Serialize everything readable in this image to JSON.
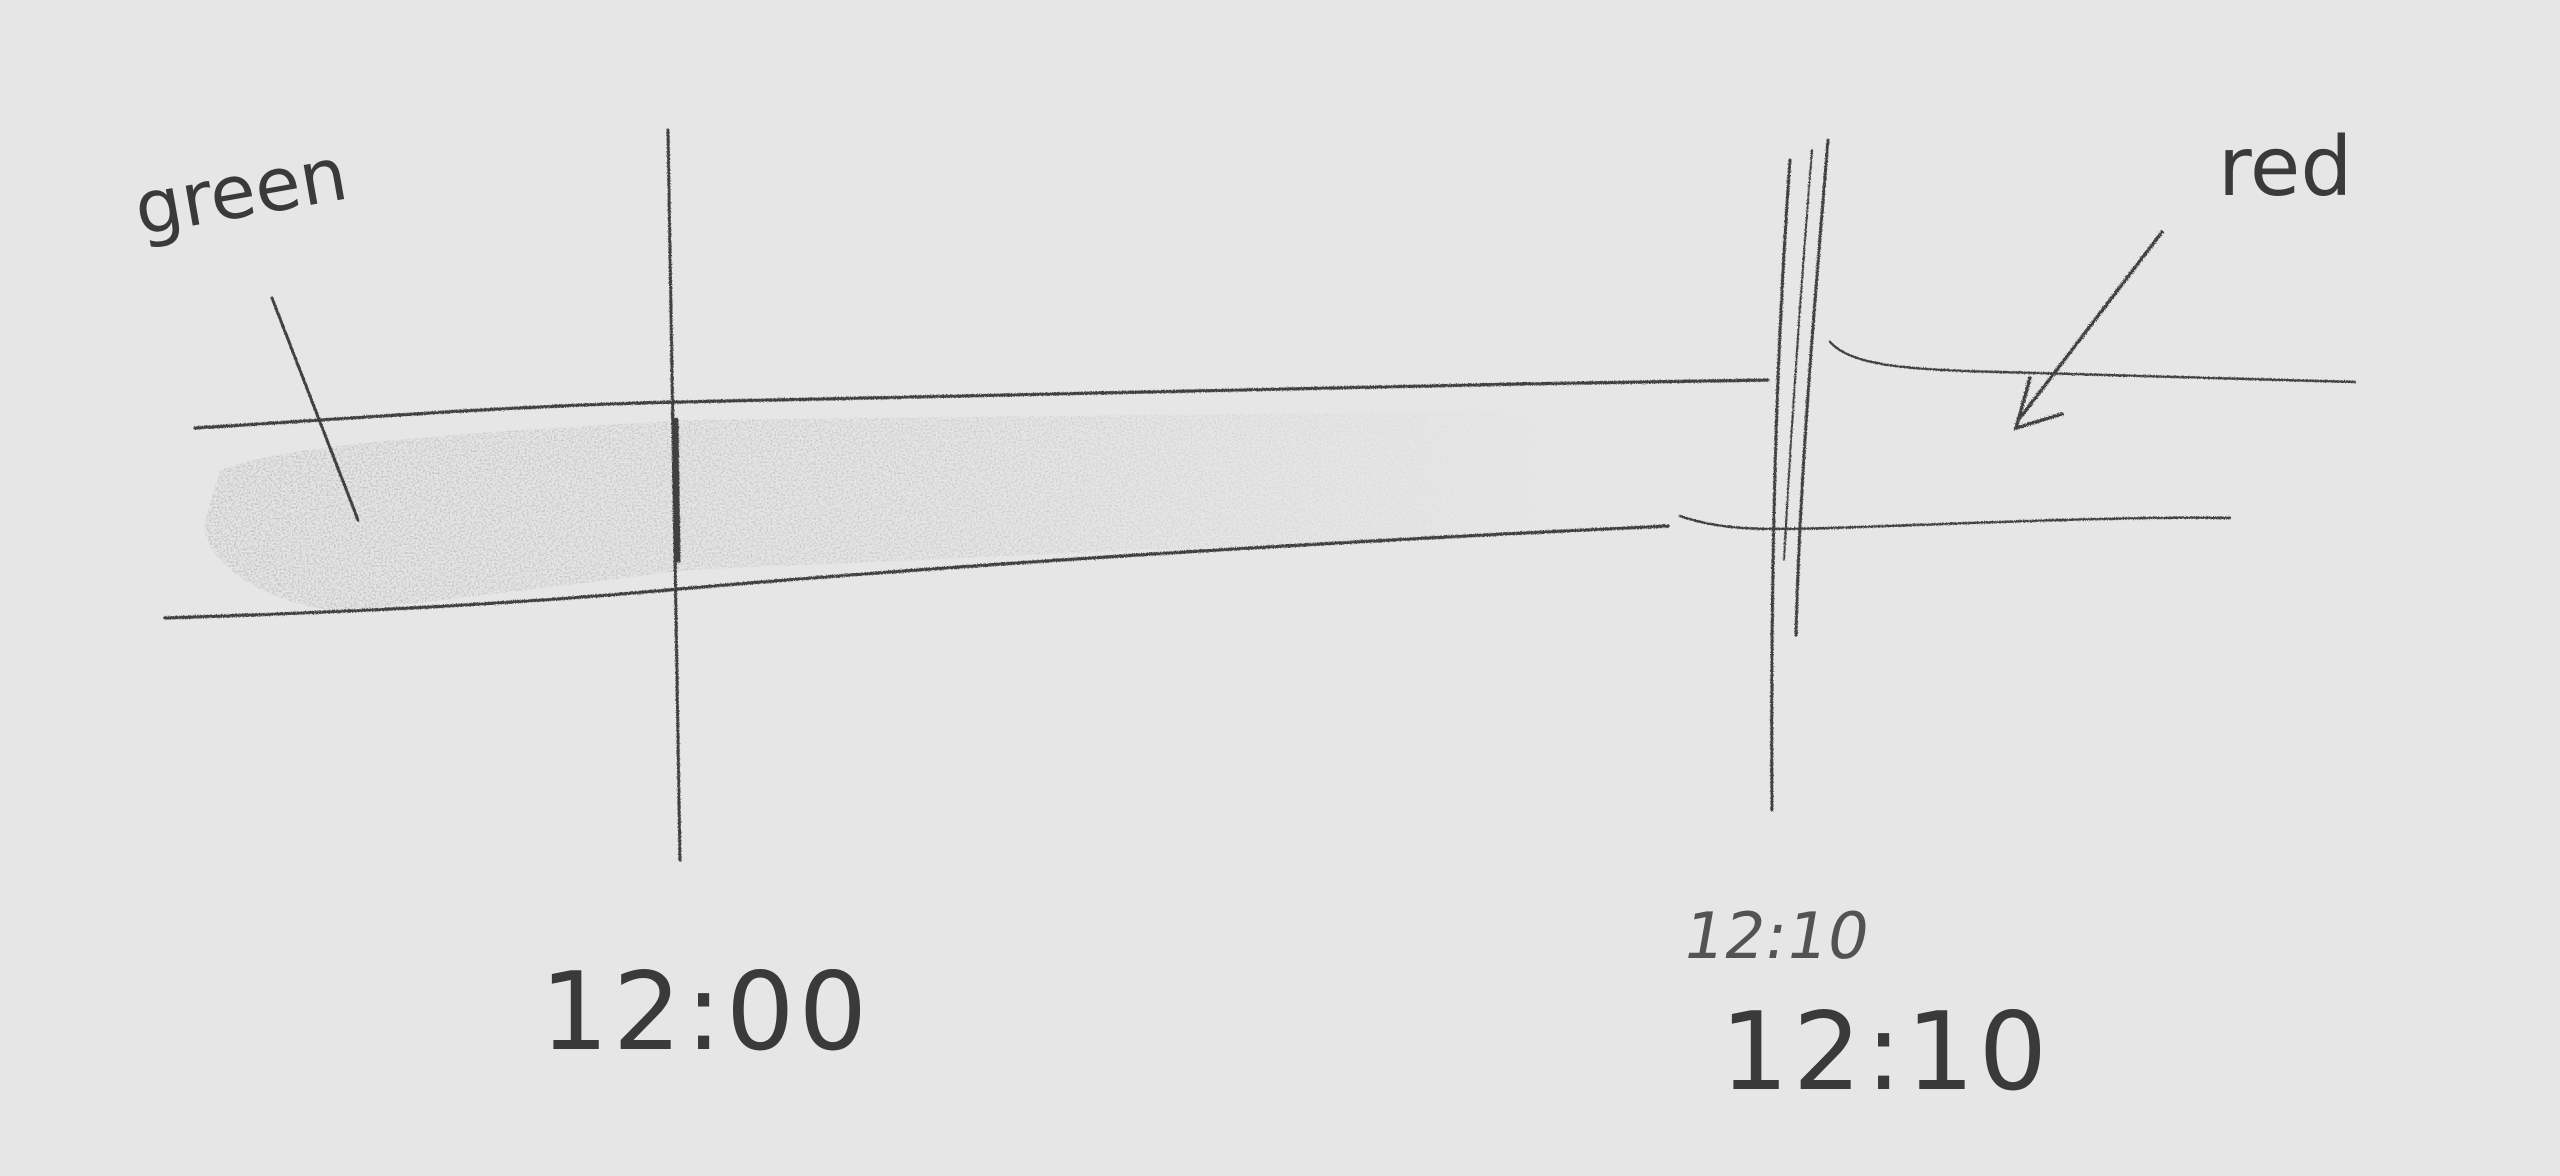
{
  "annotations": {
    "green": "green",
    "red": "red"
  },
  "time_labels": {
    "start": "12:00",
    "end_overwritten": "12:10",
    "end": "12:10"
  },
  "colors": {
    "paper": "#e6e6e6",
    "pencil": "#3a3a3a",
    "shading": "#7b7b7b"
  }
}
